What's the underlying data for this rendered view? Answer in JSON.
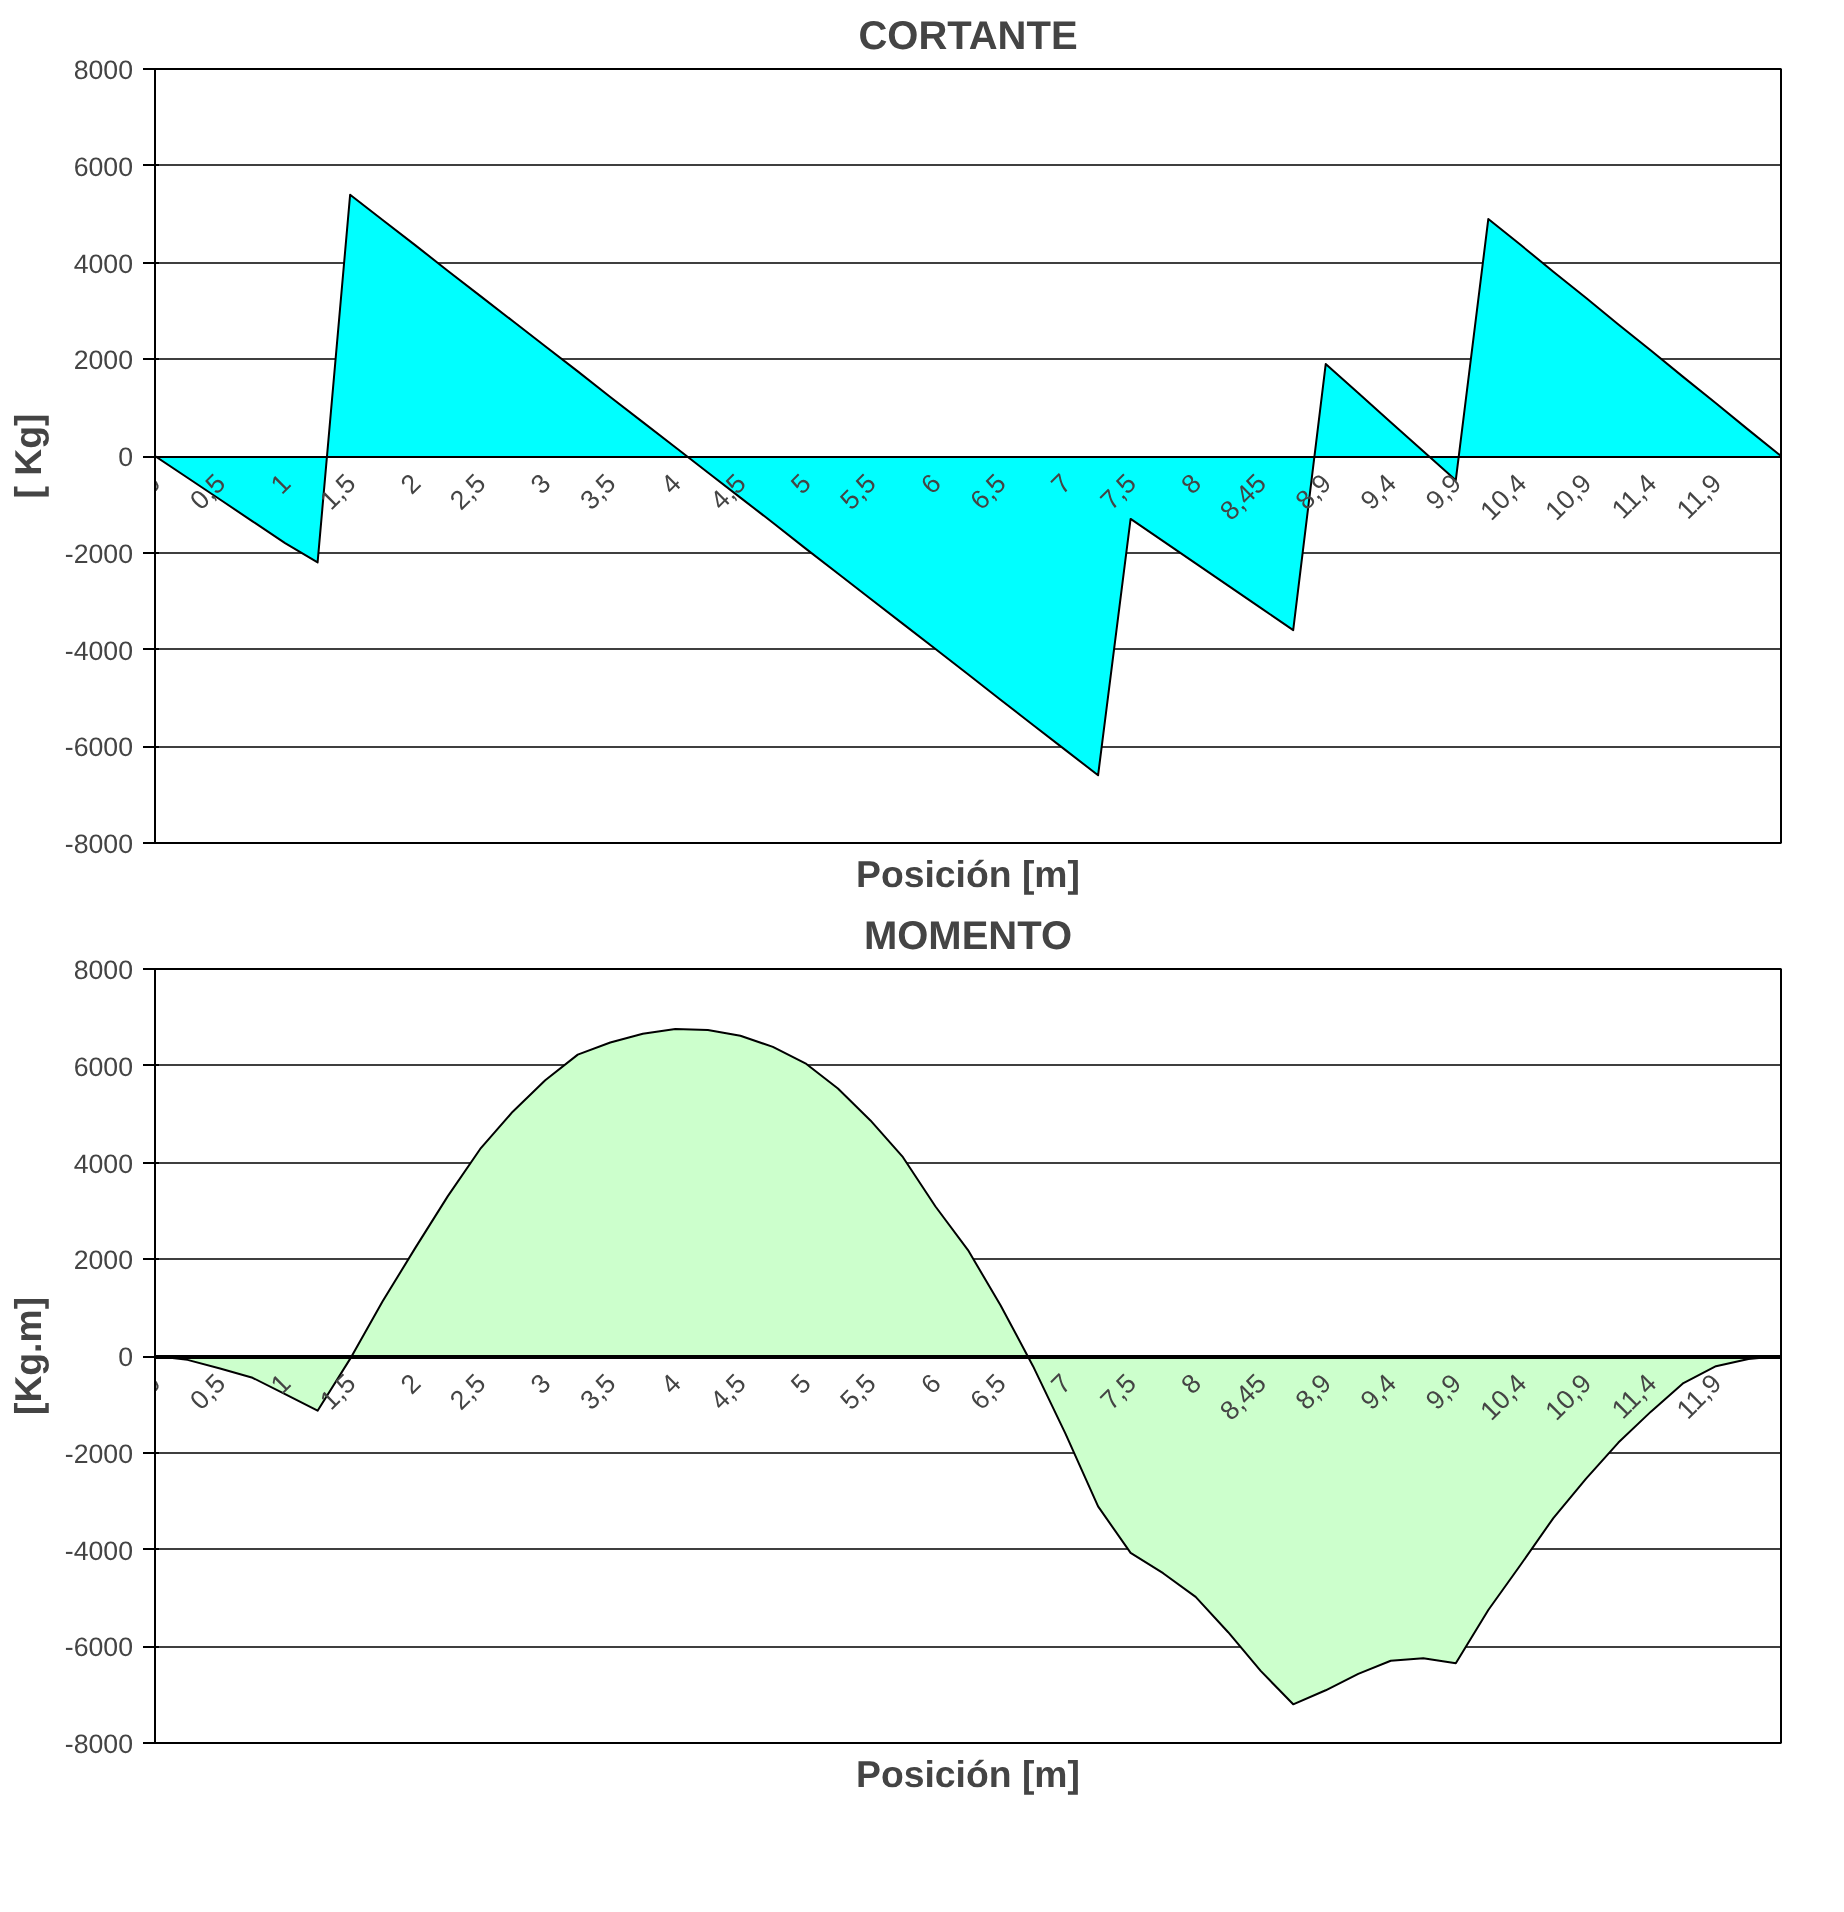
{
  "chart_data": [
    {
      "type": "area",
      "title": "CORTANTE",
      "xlabel": "Posición [m]",
      "ylabel": "[ Kg]",
      "categories": [
        "0",
        null,
        "0,5",
        null,
        "1",
        null,
        "1,5",
        null,
        "2",
        null,
        "2,5",
        null,
        "3",
        null,
        "3,5",
        null,
        "4",
        null,
        "4,5",
        null,
        "5",
        null,
        "5,5",
        null,
        "6",
        null,
        "6,5",
        null,
        "7",
        null,
        "7,5",
        null,
        "8",
        null,
        "8,45",
        null,
        "8,9",
        null,
        "9,4",
        null,
        "9,9",
        null,
        "10,4",
        null,
        "10,9",
        null,
        "11,4",
        null,
        "11,9",
        null,
        null
      ],
      "series": [
        {
          "color": "#00ffff",
          "values": [
            0,
            -450,
            -900,
            -1350,
            -1800,
            -2200,
            5400,
            4880,
            4360,
            3830,
            3310,
            2790,
            2270,
            1750,
            1220,
            700,
            180,
            -340,
            -860,
            -1380,
            -1910,
            -2430,
            -2950,
            -3470,
            -3990,
            -4510,
            -5040,
            -5560,
            -6080,
            -6600,
            -1300,
            -1760,
            -2220,
            -2680,
            -3140,
            -3600,
            1900,
            1300,
            700,
            100,
            -500,
            4900,
            4360,
            3810,
            3270,
            2720,
            2180,
            1630,
            1090,
            540,
            0
          ]
        }
      ],
      "ylim": [
        -8000,
        8000
      ],
      "yticks": [
        -8000,
        -6000,
        -4000,
        -2000,
        0,
        2000,
        4000,
        6000,
        8000
      ],
      "grid": "y"
    },
    {
      "type": "area",
      "title": "MOMENTO",
      "xlabel": "Posición [m]",
      "ylabel": "[Kg.m]",
      "categories": [
        "0",
        null,
        "0,5",
        null,
        "1",
        null,
        "1,5",
        null,
        "2",
        null,
        "2,5",
        null,
        "3",
        null,
        "3,5",
        null,
        "4",
        null,
        "4,5",
        null,
        "5",
        null,
        "5,5",
        null,
        "6",
        null,
        "6,5",
        null,
        "7",
        null,
        "7,5",
        null,
        "8",
        null,
        "8,45",
        null,
        "8,9",
        null,
        "9,4",
        null,
        "9,9",
        null,
        "10,4",
        null,
        "10,9",
        null,
        "11,4",
        null,
        "11,9",
        null,
        null
      ],
      "series": [
        {
          "color": "#ccffcc",
          "values": [
            0,
            -80,
            -260,
            -450,
            -790,
            -1130,
            -60,
            1130,
            2230,
            3300,
            4280,
            5050,
            5700,
            6230,
            6480,
            6660,
            6760,
            6740,
            6620,
            6390,
            6050,
            5530,
            4870,
            4110,
            3090,
            2190,
            1050,
            -210,
            -1610,
            -3110,
            -4070,
            -4490,
            -4980,
            -5710,
            -6510,
            -7200,
            -6910,
            -6570,
            -6300,
            -6250,
            -6350,
            -5250,
            -4310,
            -3350,
            -2540,
            -1790,
            -1150,
            -560,
            -210,
            -60,
            0
          ]
        }
      ],
      "ylim": [
        -8000,
        8000
      ],
      "yticks": [
        -8000,
        -6000,
        -4000,
        -2000,
        0,
        2000,
        4000,
        6000,
        8000
      ],
      "grid": "y"
    }
  ]
}
